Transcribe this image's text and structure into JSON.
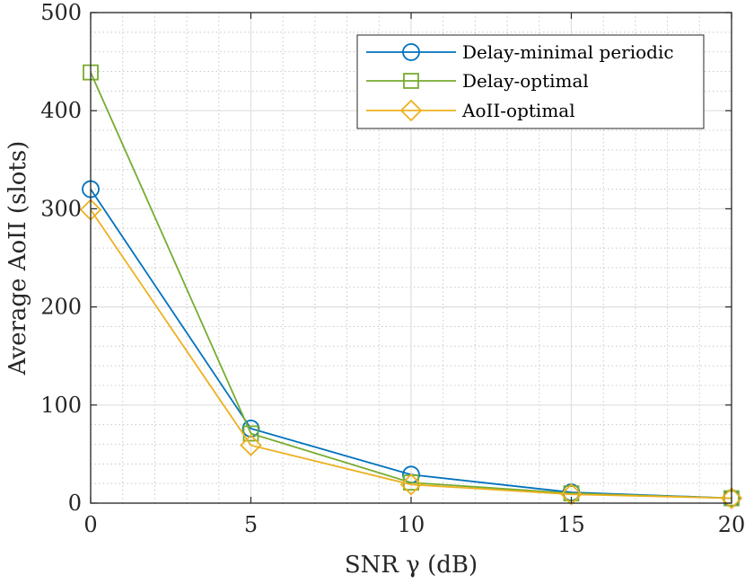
{
  "chart_data": {
    "type": "line",
    "title": "",
    "xlabel": "SNR γ (dB)",
    "ylabel": "Average AoII (slots)",
    "x": [
      0,
      5,
      10,
      15,
      20
    ],
    "xlim": [
      0,
      20
    ],
    "ylim": [
      0,
      500
    ],
    "xticks": [
      0,
      5,
      10,
      15,
      20
    ],
    "yticks": [
      0,
      100,
      200,
      300,
      400,
      500
    ],
    "grid": true,
    "minor_grid": true,
    "legend_position": "top-right",
    "series": [
      {
        "name": "Delay-minimal periodic",
        "values": [
          320,
          76,
          29,
          11,
          5
        ],
        "color": "#0072BD",
        "marker": "circle"
      },
      {
        "name": "Delay-optimal",
        "values": [
          439,
          71,
          21,
          10,
          5
        ],
        "color": "#77AC30",
        "marker": "square"
      },
      {
        "name": "AoII-optimal",
        "values": [
          299,
          59,
          19,
          9,
          5
        ],
        "color": "#EDB120",
        "marker": "diamond"
      }
    ]
  }
}
